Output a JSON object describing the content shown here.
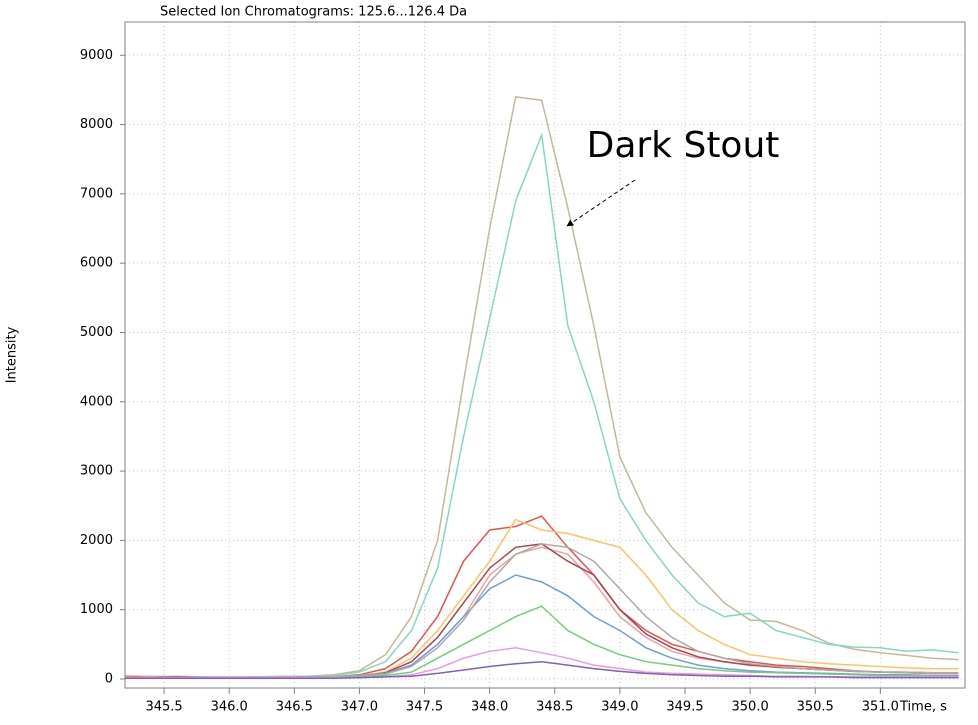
{
  "chart_data": {
    "type": "line",
    "title": "Selected Ion Chromatograms: 125.6...126.4 Da",
    "y_label": "Intensity",
    "x_label": "Time, s",
    "annotation": "Dark Stout",
    "grid": true,
    "xlim": [
      345.2,
      351.65
    ],
    "ylim": [
      -130,
      9480
    ],
    "xticks": [
      345.5,
      {
        "value": 346,
        "label": "346.0"
      },
      346.5,
      {
        "value": 347,
        "label": "347.0"
      },
      347.5,
      {
        "value": 348,
        "label": "348.0"
      },
      348.5,
      {
        "value": 349,
        "label": "349.0"
      },
      349.5,
      {
        "value": 350,
        "label": "350.0"
      },
      350.5,
      {
        "value": 351,
        "label": "351.0"
      }
    ],
    "yticks": [
      0,
      1000,
      2000,
      3000,
      4000,
      5000,
      6000,
      7000,
      8000,
      9000
    ],
    "x": [
      345.2,
      345.4,
      345.6,
      345.8,
      346.0,
      346.2,
      346.4,
      346.6,
      346.8,
      347.0,
      347.2,
      347.4,
      347.6,
      347.8,
      348.0,
      348.2,
      348.4,
      348.6,
      348.8,
      349.0,
      349.2,
      349.4,
      349.6,
      349.8,
      350.0,
      350.2,
      350.4,
      350.6,
      350.8,
      351.0,
      351.2,
      351.4,
      351.6
    ],
    "series": [
      {
        "color": "#c4b898",
        "values": [
          40,
          30,
          40,
          30,
          30,
          30,
          40,
          40,
          60,
          120,
          350,
          900,
          2000,
          4300,
          6500,
          8400,
          8350,
          6800,
          5100,
          3200,
          2400,
          1900,
          1500,
          1100,
          850,
          830,
          700,
          520,
          430,
          380,
          340,
          300,
          280
        ]
      },
      {
        "color": "#86d6c4",
        "values": [
          30,
          40,
          30,
          30,
          20,
          30,
          30,
          40,
          50,
          100,
          250,
          700,
          1600,
          3500,
          5200,
          6900,
          7850,
          5100,
          4000,
          2600,
          2000,
          1500,
          1100,
          900,
          950,
          700,
          600,
          500,
          460,
          450,
          400,
          420,
          380
        ]
      },
      {
        "color": "#e8514a",
        "values": [
          40,
          30,
          30,
          20,
          20,
          20,
          20,
          30,
          30,
          60,
          150,
          400,
          900,
          1700,
          2150,
          2200,
          2350,
          1900,
          1500,
          1000,
          700,
          500,
          400,
          300,
          250,
          200,
          180,
          150,
          120,
          100,
          100,
          90,
          80
        ]
      },
      {
        "color": "#ffc266",
        "values": [
          20,
          30,
          20,
          20,
          20,
          20,
          20,
          30,
          30,
          50,
          100,
          300,
          700,
          1200,
          1700,
          2300,
          2150,
          2100,
          2000,
          1900,
          1500,
          1000,
          700,
          500,
          350,
          300,
          250,
          220,
          200,
          180,
          160,
          150,
          150
        ]
      },
      {
        "color": "#f4a0a0",
        "values": [
          30,
          20,
          30,
          20,
          20,
          20,
          30,
          30,
          40,
          40,
          80,
          200,
          500,
          900,
          1500,
          1800,
          1900,
          1800,
          1400,
          900,
          600,
          400,
          300,
          250,
          200,
          180,
          150,
          130,
          120,
          100,
          100,
          90,
          90
        ]
      },
      {
        "color": "#b04050",
        "values": [
          20,
          20,
          30,
          20,
          20,
          20,
          20,
          30,
          30,
          40,
          90,
          250,
          600,
          1100,
          1600,
          1900,
          1950,
          1700,
          1500,
          1000,
          650,
          450,
          320,
          250,
          200,
          170,
          150,
          130,
          110,
          100,
          90,
          80,
          80
        ]
      },
      {
        "color": "#6f9fd8",
        "values": [
          20,
          20,
          20,
          20,
          20,
          20,
          20,
          30,
          30,
          50,
          80,
          200,
          500,
          900,
          1300,
          1500,
          1400,
          1200,
          900,
          700,
          450,
          300,
          200,
          150,
          120,
          100,
          90,
          80,
          70,
          60,
          60,
          50,
          50
        ]
      },
      {
        "color": "#aaaaaa",
        "values": [
          20,
          20,
          20,
          20,
          20,
          20,
          20,
          30,
          30,
          40,
          70,
          180,
          450,
          850,
          1400,
          1800,
          1950,
          1900,
          1700,
          1300,
          900,
          600,
          400,
          300,
          220,
          180,
          150,
          130,
          110,
          100,
          90,
          80,
          80
        ]
      },
      {
        "color": "#77cc77",
        "values": [
          20,
          20,
          20,
          20,
          20,
          20,
          20,
          20,
          30,
          30,
          50,
          100,
          300,
          500,
          700,
          900,
          1050,
          700,
          500,
          350,
          250,
          200,
          150,
          120,
          100,
          90,
          80,
          70,
          60,
          50,
          50,
          40,
          40
        ]
      },
      {
        "color": "#e89be8",
        "values": [
          20,
          20,
          20,
          20,
          20,
          20,
          20,
          20,
          20,
          20,
          30,
          60,
          150,
          300,
          400,
          450,
          380,
          300,
          200,
          150,
          100,
          80,
          70,
          60,
          50,
          40,
          40,
          30,
          30,
          30,
          30,
          30,
          30
        ]
      },
      {
        "color": "#8060b0",
        "values": [
          10,
          10,
          10,
          10,
          10,
          10,
          10,
          10,
          10,
          20,
          30,
          40,
          80,
          130,
          180,
          220,
          250,
          200,
          150,
          110,
          80,
          60,
          50,
          40,
          40,
          30,
          30,
          30,
          20,
          20,
          20,
          20,
          20
        ]
      }
    ]
  }
}
